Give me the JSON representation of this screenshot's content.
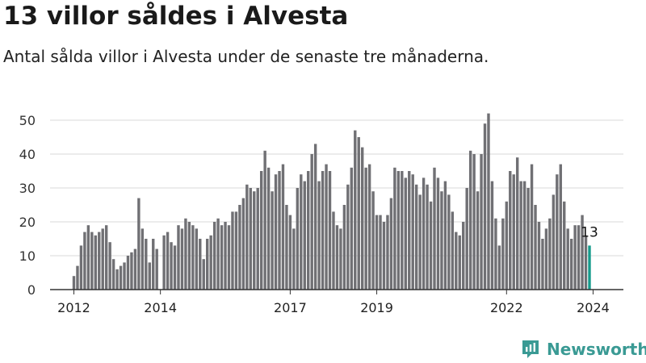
{
  "header": {
    "title": "13 villor såldes i Alvesta",
    "subtitle": "Antal sålda villor i Alvesta under de senaste tre månaderna."
  },
  "brand": {
    "name": "Newsworthy",
    "color": "#3a9a94"
  },
  "colors": {
    "bar": "#707074",
    "highlight": "#169b8c",
    "grid": "#d9d9d9",
    "axis": "#333333"
  },
  "chart_data": {
    "type": "bar",
    "title": "13 villor såldes i Alvesta",
    "subtitle": "Antal sålda villor i Alvesta under de senaste tre månaderna.",
    "x_start": "2012-01",
    "x_step": "month",
    "x_ticks": [
      {
        "label": "2012",
        "index": 0
      },
      {
        "label": "2014",
        "index": 24
      },
      {
        "label": "2017",
        "index": 60
      },
      {
        "label": "2019",
        "index": 84
      },
      {
        "label": "2022",
        "index": 120
      },
      {
        "label": "2024",
        "index": 144
      }
    ],
    "y_ticks": [
      0,
      10,
      20,
      30,
      40,
      50
    ],
    "ylim": [
      0,
      53
    ],
    "grid": true,
    "values": [
      4,
      7,
      13,
      17,
      19,
      17,
      16,
      17,
      18,
      19,
      14,
      9,
      6,
      7,
      8,
      10,
      11,
      12,
      27,
      18,
      15,
      8,
      15,
      12,
      0,
      16,
      17,
      14,
      13,
      19,
      18,
      21,
      20,
      19,
      18,
      15,
      9,
      15,
      16,
      20,
      21,
      19,
      20,
      19,
      23,
      23,
      25,
      27,
      31,
      30,
      29,
      30,
      35,
      41,
      36,
      29,
      34,
      35,
      37,
      25,
      22,
      18,
      30,
      34,
      32,
      35,
      40,
      43,
      32,
      35,
      37,
      35,
      23,
      19,
      18,
      25,
      31,
      36,
      47,
      45,
      42,
      36,
      37,
      29,
      22,
      22,
      20,
      22,
      27,
      36,
      35,
      35,
      33,
      35,
      34,
      31,
      28,
      33,
      31,
      26,
      36,
      33,
      29,
      32,
      28,
      23,
      17,
      16,
      20,
      30,
      41,
      40,
      29,
      40,
      49,
      52,
      32,
      21,
      13,
      21,
      26,
      35,
      34,
      39,
      32,
      32,
      30,
      37,
      25,
      20,
      15,
      18,
      21,
      28,
      34,
      37,
      26,
      18,
      15,
      19,
      19,
      22,
      16,
      13
    ],
    "last_value_label": "13",
    "highlight_last": true
  }
}
